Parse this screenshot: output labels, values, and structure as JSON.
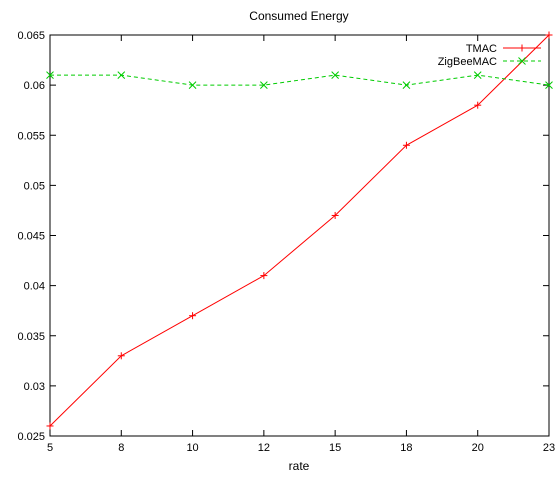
{
  "chart_data": {
    "type": "line",
    "title": "Consumed Energy",
    "xlabel": "rate",
    "ylabel": "",
    "categories": [
      "5",
      "8",
      "10",
      "12",
      "15",
      "18",
      "20",
      "23"
    ],
    "ylim": [
      0.025,
      0.065
    ],
    "yticks": [
      "0.025",
      "0.03",
      "0.035",
      "0.04",
      "0.045",
      "0.05",
      "0.055",
      "0.06",
      "0.065"
    ],
    "grid": false,
    "legend_position": "top-right",
    "series": [
      {
        "name": "TMAC",
        "values": [
          0.026,
          0.033,
          0.037,
          0.041,
          0.047,
          0.054,
          0.058,
          0.065
        ],
        "color": "#ff0000",
        "marker": "plus",
        "line_style": "solid"
      },
      {
        "name": "ZigBeeMAC",
        "values": [
          0.061,
          0.061,
          0.06,
          0.06,
          0.061,
          0.06,
          0.061,
          0.06
        ],
        "color": "#00cc00",
        "marker": "cross",
        "line_style": "dashed"
      }
    ]
  }
}
